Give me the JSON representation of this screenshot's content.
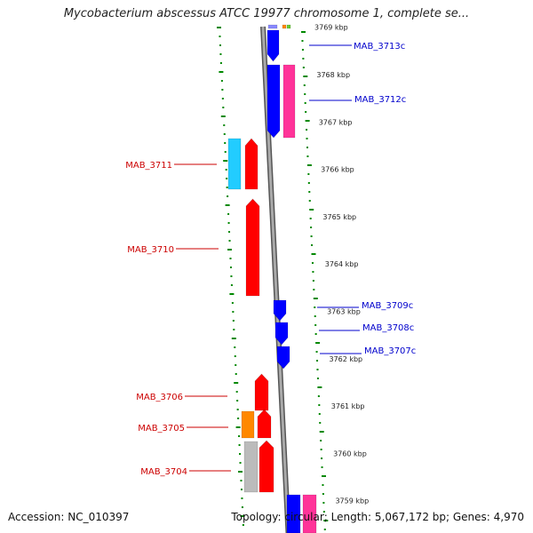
{
  "title": "Mycobacterium abscessus ATCC 19977 chromosome 1, complete se...",
  "accession": "Accession: NC_010397",
  "summary": "Topology: circular; Length: 5,067,172 bp; Genes: 4,970",
  "colors": {
    "forward": "#ff0000",
    "reverse": "#0000ff",
    "label_forward": "#cc0000",
    "label_reverse": "#0000cc",
    "cyan": "#22ccff",
    "orange": "#ff8800",
    "pink": "#ff3399",
    "grey": "#bbbbbb",
    "backbone": "#888888",
    "ticks": "#008800"
  },
  "scale_labels": [
    {
      "kbp": 3769,
      "text": "3769 kbp"
    },
    {
      "kbp": 3768,
      "text": "3768 kbp"
    },
    {
      "kbp": 3767,
      "text": "3767 kbp"
    },
    {
      "kbp": 3766,
      "text": "3766 kbp"
    },
    {
      "kbp": 3765,
      "text": "3765 kbp"
    },
    {
      "kbp": 3764,
      "text": "3764 kbp"
    },
    {
      "kbp": 3763,
      "text": "3763 kbp"
    },
    {
      "kbp": 3762,
      "text": "3762 kbp"
    },
    {
      "kbp": 3761,
      "text": "3761 kbp"
    },
    {
      "kbp": 3760,
      "text": "3760 kbp"
    },
    {
      "kbp": 3759,
      "text": "3759 kbp"
    }
  ],
  "gene_labels": [
    {
      "name": "MAB_3713c",
      "strand": "reverse"
    },
    {
      "name": "MAB_3712c",
      "strand": "reverse"
    },
    {
      "name": "MAB_3711",
      "strand": "forward"
    },
    {
      "name": "MAB_3710",
      "strand": "forward"
    },
    {
      "name": "MAB_3709c",
      "strand": "reverse"
    },
    {
      "name": "MAB_3708c",
      "strand": "reverse"
    },
    {
      "name": "MAB_3707c",
      "strand": "reverse"
    },
    {
      "name": "MAB_3706",
      "strand": "forward"
    },
    {
      "name": "MAB_3705",
      "strand": "forward"
    },
    {
      "name": "MAB_3704",
      "strand": "forward"
    }
  ]
}
